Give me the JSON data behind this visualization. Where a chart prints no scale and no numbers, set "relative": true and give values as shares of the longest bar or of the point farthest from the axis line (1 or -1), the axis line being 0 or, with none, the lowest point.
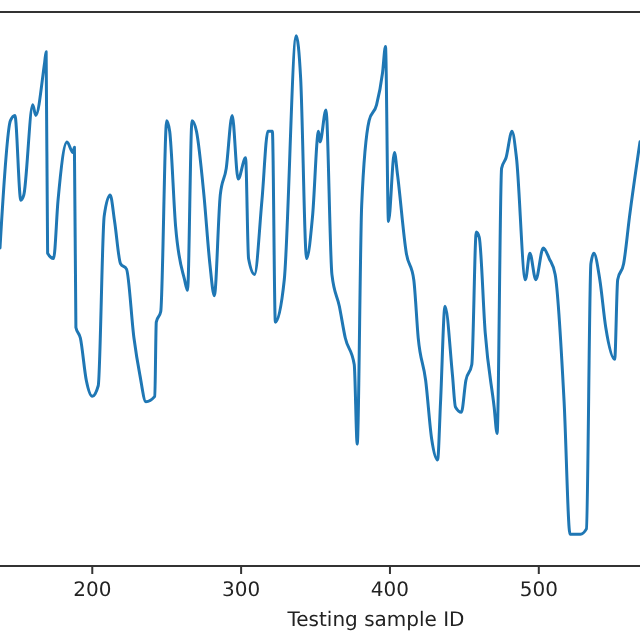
{
  "chart_data": {
    "type": "line",
    "xlabel": "Testing sample ID",
    "relative": true,
    "xlim": [
      138,
      568
    ],
    "xticks": [
      200,
      300,
      400,
      500
    ],
    "grid": false,
    "x": [
      138,
      145,
      148,
      152,
      154,
      160,
      162,
      168,
      169,
      170,
      174,
      177,
      183,
      187,
      188,
      189,
      192,
      196,
      200,
      204,
      208,
      212,
      215,
      219,
      223,
      228,
      232,
      236,
      242,
      243,
      246,
      250,
      252,
      256,
      262,
      264,
      267,
      270,
      275,
      279,
      282,
      286,
      290,
      294,
      298,
      303,
      305,
      309,
      314,
      318,
      321,
      323,
      329,
      337,
      340,
      344,
      348,
      352,
      353,
      357,
      361,
      366,
      370,
      376,
      378,
      381,
      386,
      391,
      395,
      397,
      399,
      403,
      405,
      411,
      416,
      419,
      424,
      428,
      432,
      434,
      437,
      442,
      444,
      448,
      451,
      455,
      458,
      460,
      464,
      470,
      472,
      475,
      478,
      482,
      485,
      491,
      494,
      498,
      503,
      507,
      511,
      517,
      521,
      528,
      532,
      535,
      537,
      541,
      545,
      551,
      553,
      557,
      561,
      568
    ],
    "series": [
      {
        "color": "#1f77b4",
        "values": [
          0.6,
          0.84,
          0.85,
          0.69,
          0.7,
          0.87,
          0.85,
          0.95,
          0.97,
          0.59,
          0.58,
          0.69,
          0.8,
          0.78,
          0.79,
          0.45,
          0.43,
          0.35,
          0.32,
          0.34,
          0.66,
          0.7,
          0.65,
          0.57,
          0.56,
          0.43,
          0.36,
          0.31,
          0.32,
          0.46,
          0.48,
          0.84,
          0.82,
          0.64,
          0.54,
          0.52,
          0.84,
          0.82,
          0.7,
          0.57,
          0.51,
          0.7,
          0.75,
          0.85,
          0.73,
          0.77,
          0.58,
          0.55,
          0.69,
          0.82,
          0.82,
          0.46,
          0.54,
          1,
          0.92,
          0.58,
          0.66,
          0.82,
          0.8,
          0.86,
          0.55,
          0.49,
          0.43,
          0.38,
          0.23,
          0.68,
          0.84,
          0.87,
          0.93,
          0.98,
          0.65,
          0.78,
          0.74,
          0.59,
          0.54,
          0.43,
          0.35,
          0.24,
          0.2,
          0.31,
          0.49,
          0.36,
          0.3,
          0.29,
          0.35,
          0.38,
          0.63,
          0.62,
          0.44,
          0.3,
          0.25,
          0.75,
          0.77,
          0.82,
          0.77,
          0.54,
          0.59,
          0.54,
          0.6,
          0.58,
          0.55,
          0.31,
          0.06,
          0.06,
          0.07,
          0.57,
          0.59,
          0.54,
          0.45,
          0.39,
          0.54,
          0.57,
          0.66,
          0.8
        ]
      }
    ]
  }
}
